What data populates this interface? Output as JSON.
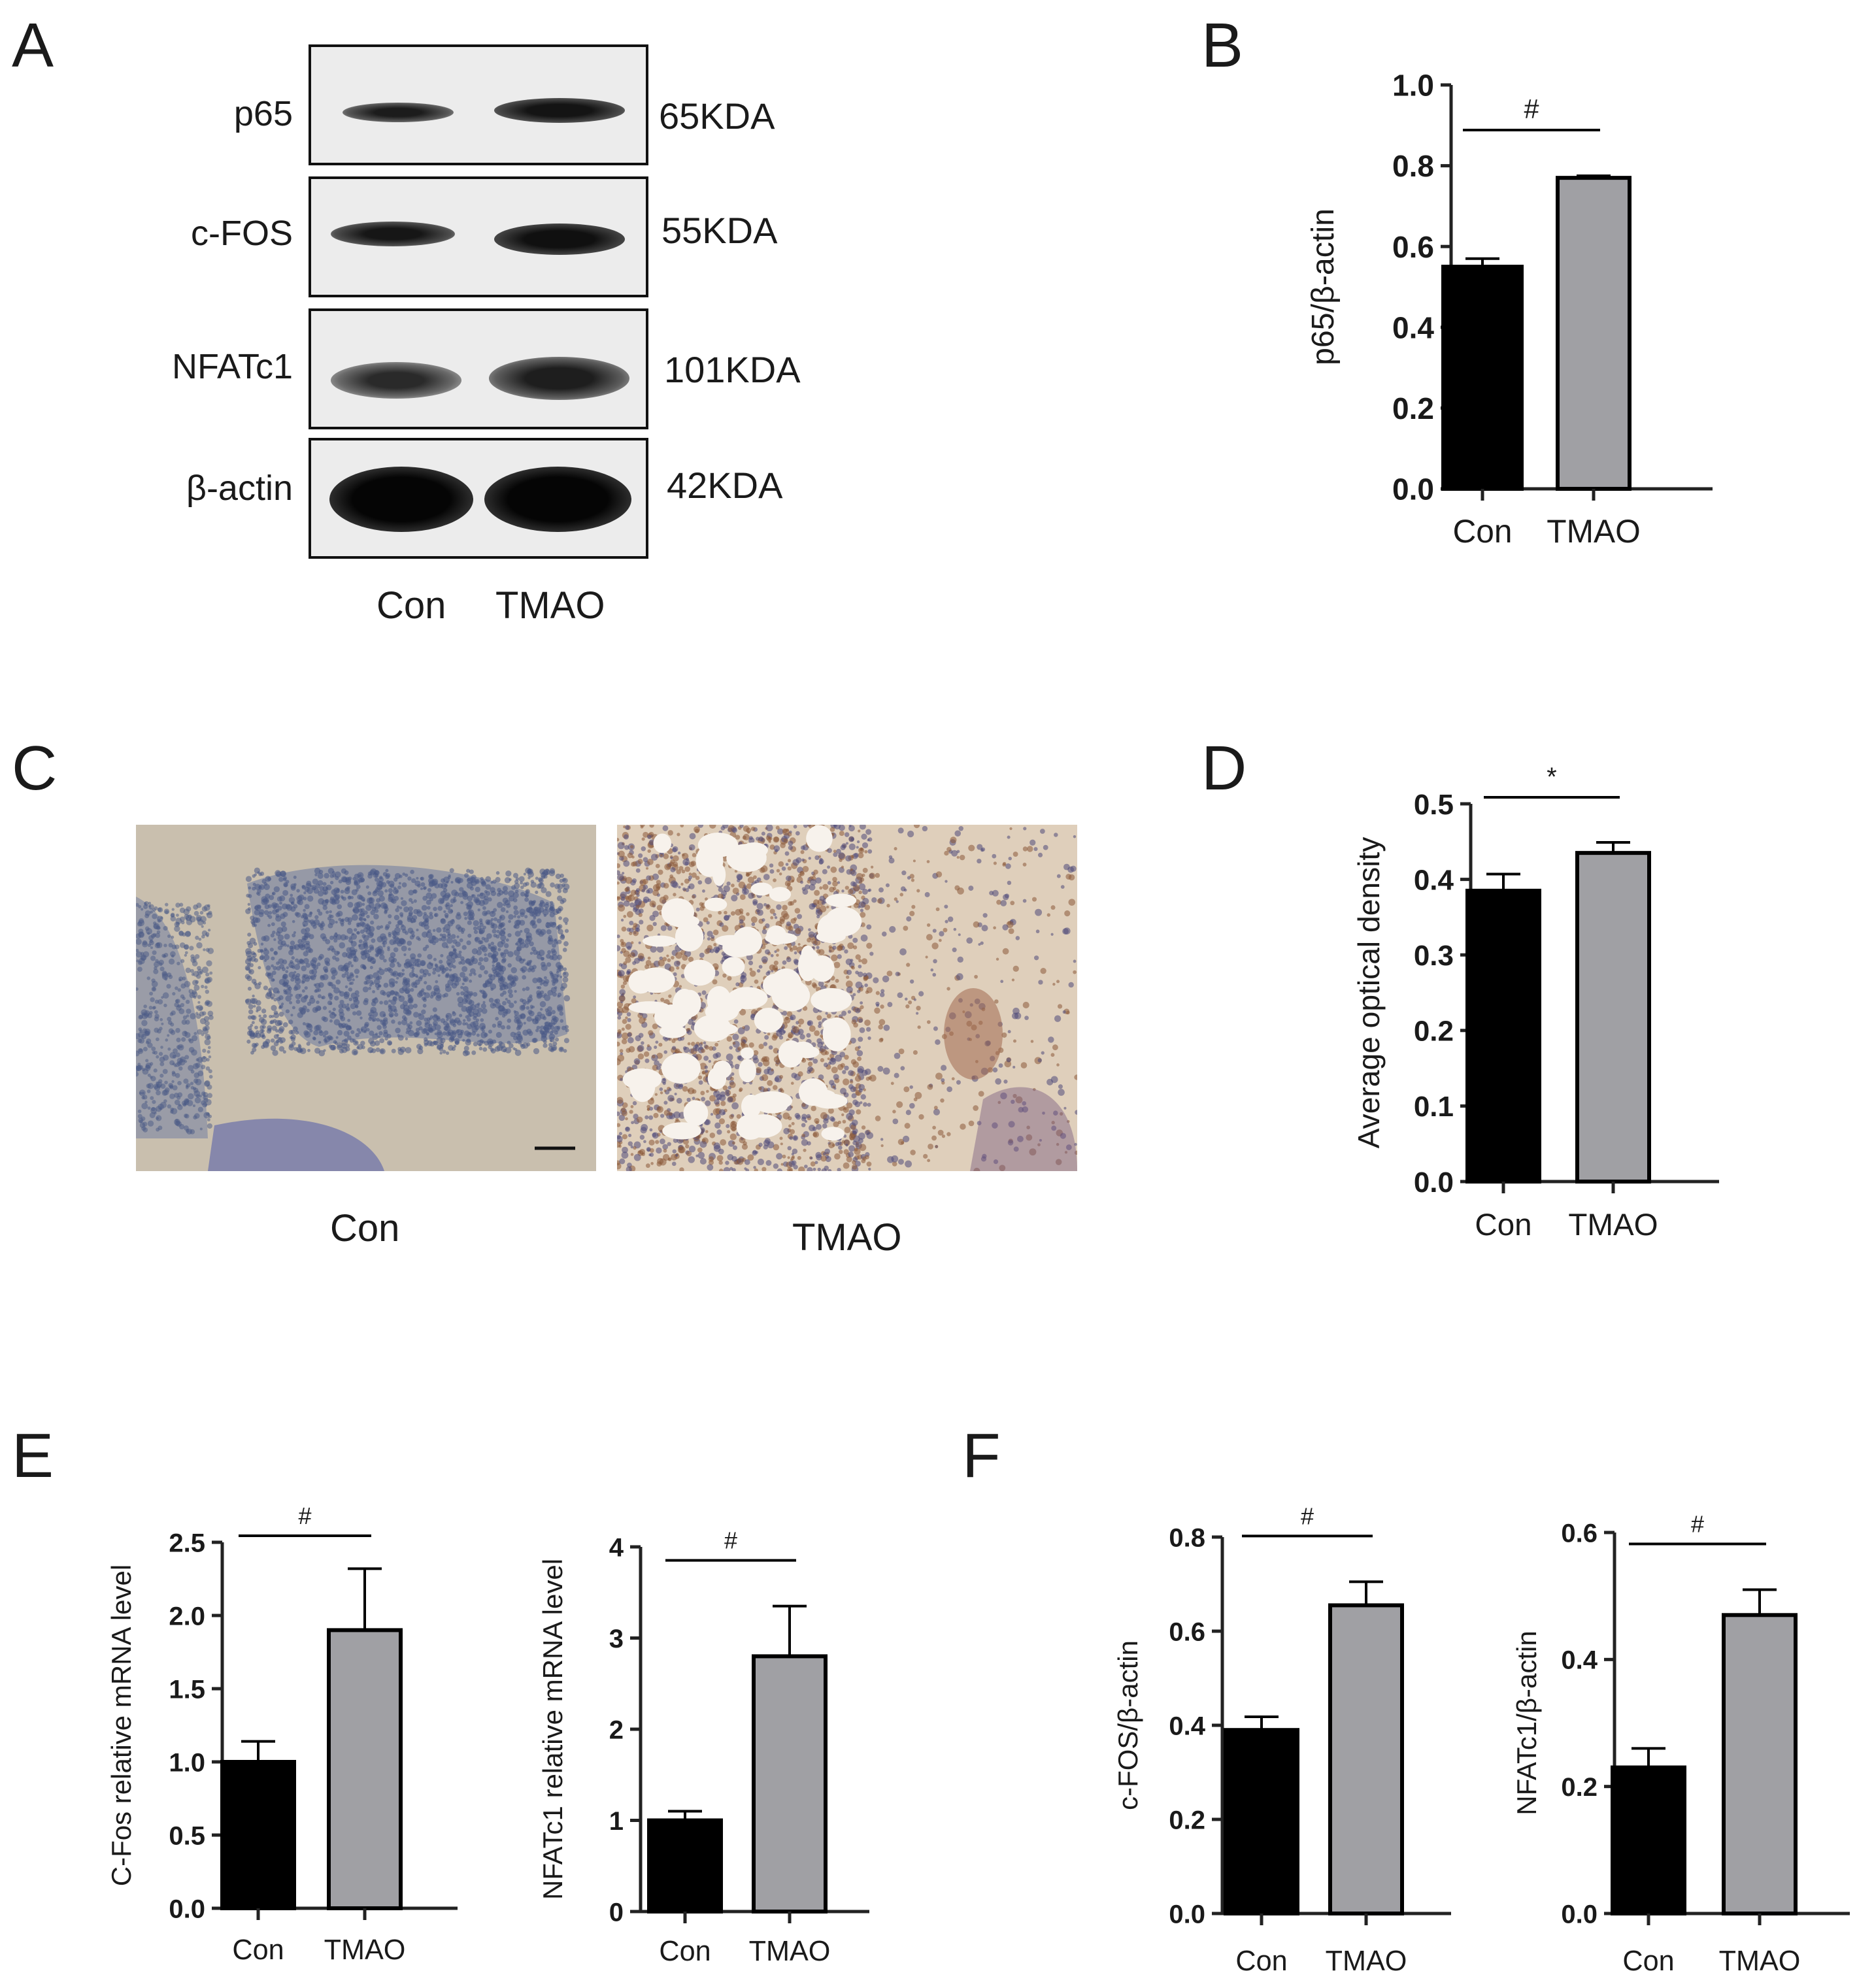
{
  "panel_labels": [
    "A",
    "B",
    "C",
    "D",
    "E",
    "F"
  ],
  "blot": {
    "rows": [
      {
        "protein": "p65",
        "size": "65KDA"
      },
      {
        "protein": "c-FOS",
        "size": "55KDA"
      },
      {
        "protein": "NFATc1",
        "size": "101KDA"
      },
      {
        "protein": "β-actin",
        "size": "42KDA"
      }
    ],
    "lanes": [
      "Con",
      "TMAO"
    ]
  },
  "ihc": {
    "labels": [
      "Con",
      "TMAO"
    ],
    "colors": {
      "con_base": "#c9bfae",
      "con_cells": "#4a5a86",
      "tmao_base": "#d9c4ae",
      "tmao_cells": "#8a5a3a"
    }
  },
  "colors": {
    "con_bar": "#000000",
    "tmao_bar": "#a0a0a4"
  },
  "chart_data": [
    {
      "id": "B",
      "type": "bar",
      "categories": [
        "Con",
        "TMAO"
      ],
      "values": [
        0.55,
        0.77
      ],
      "errors": [
        0.02,
        0.005
      ],
      "ylabel": "p65/β-actin",
      "ylim": [
        0,
        1.0
      ],
      "yticks": [
        "0.0",
        "0.2",
        "0.4",
        "0.6",
        "0.8",
        "1.0"
      ],
      "significance": "#"
    },
    {
      "id": "D",
      "type": "bar",
      "categories": [
        "Con",
        "TMAO"
      ],
      "values": [
        0.385,
        0.435
      ],
      "errors": [
        0.022,
        0.014
      ],
      "ylabel": "Average optical density",
      "ylim": [
        0,
        0.5
      ],
      "yticks": [
        "0.0",
        "0.1",
        "0.2",
        "0.3",
        "0.4",
        "0.5"
      ],
      "significance": "*"
    },
    {
      "id": "E1",
      "type": "bar",
      "categories": [
        "Con",
        "TMAO"
      ],
      "values": [
        1.0,
        1.9
      ],
      "errors": [
        0.14,
        0.42
      ],
      "ylabel": "C-Fos relative mRNA level",
      "ylim": [
        0,
        2.5
      ],
      "yticks": [
        "0.0",
        "0.5",
        "1.0",
        "1.5",
        "2.0",
        "2.5"
      ],
      "significance": "#"
    },
    {
      "id": "E2",
      "type": "bar",
      "categories": [
        "Con",
        "TMAO"
      ],
      "values": [
        1.0,
        2.8
      ],
      "errors": [
        0.1,
        0.55
      ],
      "ylabel": "NFATc1 relative mRNA level",
      "ylim": [
        0,
        4
      ],
      "yticks": [
        "0",
        "1",
        "2",
        "3",
        "4"
      ],
      "significance": "#"
    },
    {
      "id": "F1",
      "type": "bar",
      "categories": [
        "Con",
        "TMAO"
      ],
      "values": [
        0.39,
        0.655
      ],
      "errors": [
        0.028,
        0.05
      ],
      "ylabel": "c-FOS/β-actin",
      "ylim": [
        0,
        0.8
      ],
      "yticks": [
        "0.0",
        "0.2",
        "0.4",
        "0.6",
        "0.8"
      ],
      "significance": "#"
    },
    {
      "id": "F2",
      "type": "bar",
      "categories": [
        "Con",
        "TMAO"
      ],
      "values": [
        0.23,
        0.47
      ],
      "errors": [
        0.03,
        0.04
      ],
      "ylabel": "NFATc1/β-actin",
      "ylim": [
        0,
        0.6
      ],
      "yticks": [
        "0.0",
        "0.2",
        "0.4",
        "0.6"
      ],
      "significance": "#"
    }
  ]
}
